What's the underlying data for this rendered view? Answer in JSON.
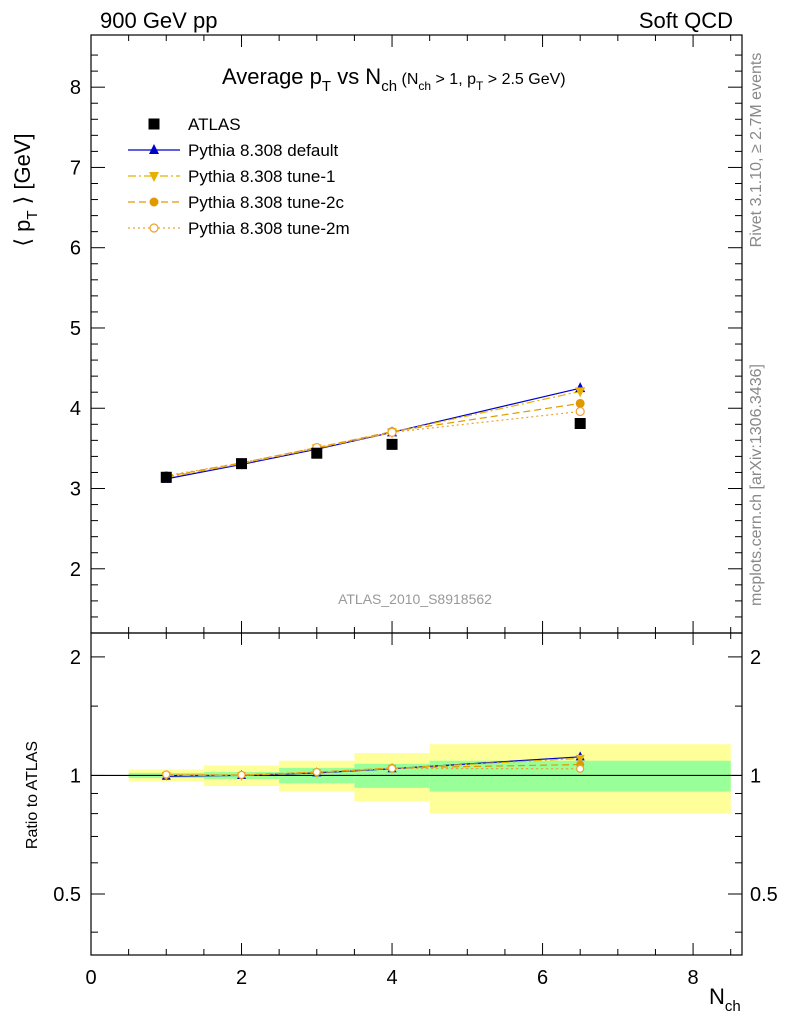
{
  "header": {
    "left": "900 GeV pp",
    "right": "Soft QCD"
  },
  "side_labels": {
    "rivet": "Rivet 3.1.10, ≥ 2.7M events",
    "mcplots": "mcplots.cern.ch [arXiv:1306.3436]"
  },
  "watermark": "ATLAS_2010_S8918562",
  "chart_data": [
    {
      "type": "scatter",
      "panel": "main",
      "title": "Average p_T vs N_ch (N_ch > 1, p_T > 2.5 GeV)",
      "title_parts": {
        "main1": "Average p",
        "sub1": "T",
        "main2": " vs N",
        "sub2": "ch",
        "cut1": " (N",
        "cut_sub1": "ch",
        "cut2": " > 1, p",
        "cut_sub2": "T",
        "cut3": " > 2.5 GeV)"
      },
      "ylabel": "⟨ p_T ⟩ [GeV]",
      "ylabel_parts": {
        "pre": "⟨ p",
        "sub": "T",
        "post": " ⟩  [GeV]"
      },
      "xlim": [
        0,
        8.65
      ],
      "ylim": [
        1.2,
        8.65
      ],
      "y_ticks": [
        2,
        3,
        4,
        5,
        6,
        7,
        8
      ],
      "y_tick_labels": [
        "2",
        "3",
        "4",
        "5",
        "6",
        "7",
        "8"
      ],
      "legend_position": "top-left",
      "series": [
        {
          "name": "ATLAS",
          "marker": "square-filled",
          "color": "#000000",
          "line": "none",
          "x": [
            1,
            2,
            3,
            4,
            6.5
          ],
          "y": [
            3.14,
            3.31,
            3.44,
            3.55,
            3.81
          ]
        },
        {
          "name": "Pythia 8.308 default",
          "marker": "triangle-up-filled",
          "color": "#0000cc",
          "line": "solid",
          "x": [
            1,
            2,
            3,
            4,
            6.5
          ],
          "y": [
            3.12,
            3.3,
            3.49,
            3.7,
            4.25
          ]
        },
        {
          "name": "Pythia 8.308 tune-1",
          "marker": "triangle-down-filled",
          "color": "#e8b000",
          "line": "dashdot",
          "x": [
            1,
            2,
            3,
            4,
            6.5
          ],
          "y": [
            3.14,
            3.31,
            3.5,
            3.7,
            4.21
          ]
        },
        {
          "name": "Pythia 8.308 tune-2c",
          "marker": "circle-filled",
          "color": "#e09a00",
          "line": "dashed",
          "x": [
            1,
            2,
            3,
            4,
            6.5
          ],
          "y": [
            3.15,
            3.32,
            3.51,
            3.71,
            4.06
          ]
        },
        {
          "name": "Pythia 8.308 tune-2m",
          "marker": "circle-open",
          "color": "#f0a030",
          "line": "dotted",
          "x": [
            1,
            2,
            3,
            4,
            6.5
          ],
          "y": [
            3.16,
            3.32,
            3.51,
            3.7,
            3.96
          ]
        }
      ]
    },
    {
      "type": "scatter",
      "panel": "ratio",
      "ylabel": "Ratio to ATLAS",
      "xlabel": "N_ch",
      "xlabel_parts": {
        "main": "N",
        "sub": "ch"
      },
      "xlim": [
        0,
        8.65
      ],
      "ylim": [
        0.35,
        2.3
      ],
      "x_ticks": [
        0,
        2,
        4,
        6,
        8
      ],
      "x_tick_labels": [
        "0",
        "2",
        "4",
        "6",
        "8"
      ],
      "y_ticks": [
        0.5,
        1,
        2
      ],
      "y_tick_labels": [
        "0.5",
        "1",
        "2"
      ],
      "uncertainty_bands": [
        {
          "x_low": 0.5,
          "x_high": 1.5,
          "stat": [
            0.985,
            1.015
          ],
          "total": [
            0.965,
            1.035
          ]
        },
        {
          "x_low": 1.5,
          "x_high": 2.5,
          "stat": [
            0.98,
            1.02
          ],
          "total": [
            0.94,
            1.06
          ]
        },
        {
          "x_low": 2.5,
          "x_high": 3.5,
          "stat": [
            0.955,
            1.045
          ],
          "total": [
            0.91,
            1.09
          ]
        },
        {
          "x_low": 3.5,
          "x_high": 4.5,
          "stat": [
            0.93,
            1.07
          ],
          "total": [
            0.86,
            1.14
          ]
        },
        {
          "x_low": 4.5,
          "x_high": 8.5,
          "stat": [
            0.91,
            1.09
          ],
          "total": [
            0.8,
            1.2
          ]
        }
      ],
      "band_colors": {
        "stat": "#99ff99",
        "total": "#ffff99"
      },
      "series": [
        {
          "name": "Pythia 8.308 default",
          "marker": "triangle-up-filled",
          "color": "#0000cc",
          "line": "solid",
          "x": [
            1,
            2,
            3,
            4,
            6.5
          ],
          "y": [
            0.995,
            1.0,
            1.015,
            1.04,
            1.115
          ]
        },
        {
          "name": "Pythia 8.308 tune-1",
          "marker": "triangle-down-filled",
          "color": "#e8b000",
          "line": "dashdot",
          "x": [
            1,
            2,
            3,
            4,
            6.5
          ],
          "y": [
            1.0,
            1.0,
            1.017,
            1.042,
            1.105
          ]
        },
        {
          "name": "Pythia 8.308 tune-2c",
          "marker": "circle-filled",
          "color": "#e09a00",
          "line": "dashed",
          "x": [
            1,
            2,
            3,
            4,
            6.5
          ],
          "y": [
            1.003,
            1.003,
            1.02,
            1.045,
            1.066
          ]
        },
        {
          "name": "Pythia 8.308 tune-2m",
          "marker": "circle-open",
          "color": "#f0a030",
          "line": "dotted",
          "x": [
            1,
            2,
            3,
            4,
            6.5
          ],
          "y": [
            1.006,
            1.003,
            1.02,
            1.042,
            1.04
          ]
        }
      ]
    }
  ]
}
